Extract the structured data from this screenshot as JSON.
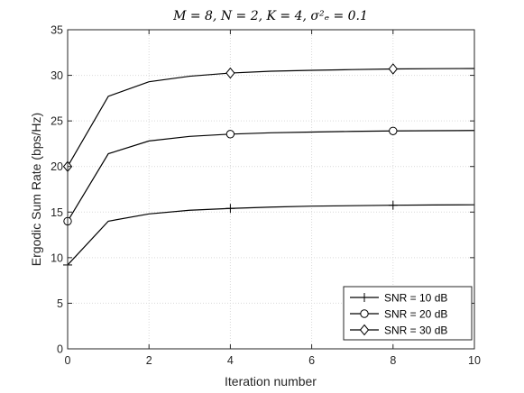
{
  "chart_data": {
    "type": "line",
    "title": "M = 8, N = 2, K = 4, σ²ₑ = 0.1",
    "xlabel": "Iteration number",
    "ylabel": "Ergodic Sum Rate (bps/Hz)",
    "xlim": [
      0,
      10
    ],
    "ylim": [
      0,
      35
    ],
    "xticks": [
      "0",
      "2",
      "4",
      "6",
      "8",
      "10"
    ],
    "yticks": [
      "0",
      "5",
      "10",
      "15",
      "20",
      "25",
      "30",
      "35"
    ],
    "grid": true,
    "legend_position": "bottom-right",
    "x": [
      0,
      1,
      2,
      3,
      4,
      5,
      6,
      7,
      8,
      9,
      10
    ],
    "series": [
      {
        "name": "SNR = 10 dB",
        "marker": "plus",
        "values": [
          9.2,
          14.0,
          14.8,
          15.2,
          15.4,
          15.55,
          15.65,
          15.7,
          15.75,
          15.78,
          15.8
        ],
        "marker_x": [
          0,
          4,
          8
        ]
      },
      {
        "name": "SNR = 20 dB",
        "marker": "circle",
        "values": [
          14.0,
          21.4,
          22.8,
          23.3,
          23.55,
          23.7,
          23.78,
          23.85,
          23.9,
          23.93,
          23.95
        ],
        "marker_x": [
          0,
          4,
          8
        ]
      },
      {
        "name": "SNR = 30 dB",
        "marker": "diamond",
        "values": [
          20.0,
          27.7,
          29.3,
          29.9,
          30.25,
          30.45,
          30.55,
          30.63,
          30.7,
          30.73,
          30.75
        ],
        "marker_x": [
          0,
          4,
          8
        ]
      }
    ],
    "colors": {
      "line": "#000000",
      "grid": "#d9d9d9",
      "axis": "#262626"
    }
  }
}
